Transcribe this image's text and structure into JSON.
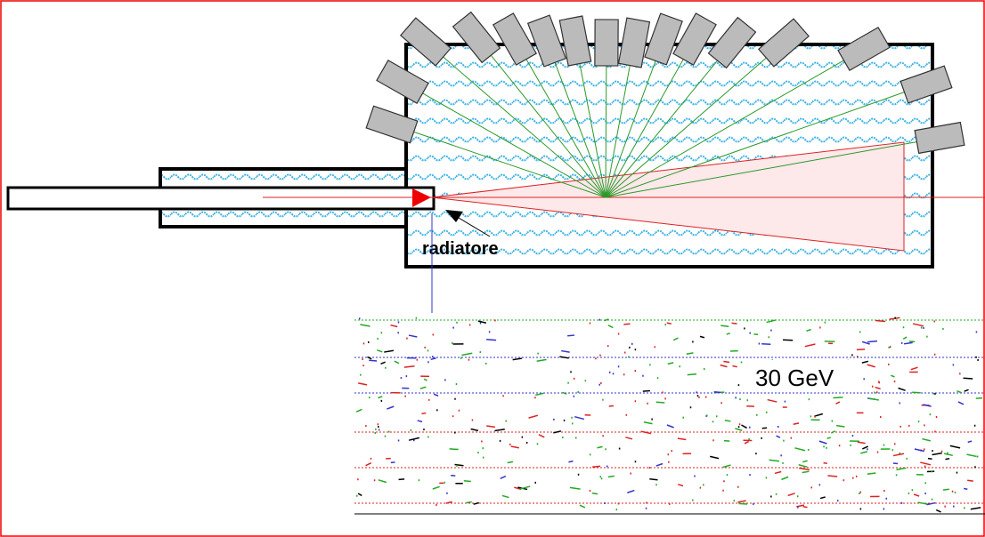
{
  "labels": {
    "radiator": "radiatore",
    "energy": "30 GeV"
  }
}
